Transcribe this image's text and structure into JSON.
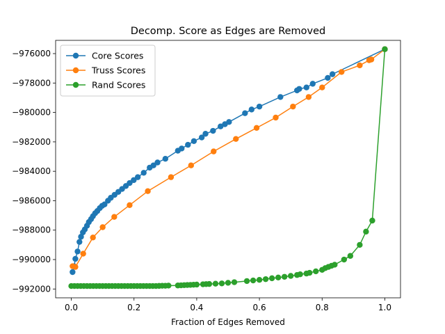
{
  "chart_data": {
    "type": "line",
    "title": "Decomp. Score as Edges are Removed",
    "xlabel": "Fraction of Edges Removed",
    "ylabel": "",
    "xlim": [
      -0.05,
      1.05
    ],
    "ylim": [
      -992600,
      -975100
    ],
    "x_ticks": [
      0.0,
      0.2,
      0.4,
      0.6,
      0.8,
      1.0
    ],
    "x_tick_labels": [
      "0.0",
      "0.2",
      "0.4",
      "0.6",
      "0.8",
      "1.0"
    ],
    "y_ticks": [
      -992000,
      -990000,
      -988000,
      -986000,
      -984000,
      -982000,
      -980000,
      -978000,
      -976000
    ],
    "y_tick_labels": [
      "−992000",
      "−990000",
      "−988000",
      "−986000",
      "−984000",
      "−982000",
      "−980000",
      "−978000",
      "−976000"
    ],
    "grid": false,
    "legend_position": "top-left",
    "series": [
      {
        "name": "Core Scores",
        "color": "#1f77b4",
        "x": [
          0.004,
          0.009,
          0.013,
          0.02,
          0.026,
          0.031,
          0.037,
          0.043,
          0.05,
          0.056,
          0.063,
          0.069,
          0.076,
          0.083,
          0.091,
          0.098,
          0.106,
          0.117,
          0.126,
          0.138,
          0.15,
          0.162,
          0.174,
          0.186,
          0.199,
          0.212,
          0.231,
          0.25,
          0.262,
          0.275,
          0.3,
          0.34,
          0.352,
          0.372,
          0.391,
          0.416,
          0.428,
          0.452,
          0.476,
          0.49,
          0.503,
          0.554,
          0.575,
          0.6,
          0.667,
          0.72,
          0.727,
          0.75,
          0.77,
          0.818,
          0.833,
          1.0
        ],
        "y": [
          -990850,
          -990450,
          -989950,
          -989450,
          -988800,
          -988450,
          -988150,
          -987950,
          -987700,
          -987450,
          -987250,
          -987050,
          -986850,
          -986700,
          -986500,
          -986350,
          -986250,
          -986000,
          -985800,
          -985600,
          -985400,
          -985200,
          -985000,
          -984800,
          -984600,
          -984400,
          -984100,
          -983750,
          -983600,
          -983400,
          -983150,
          -982600,
          -982450,
          -982200,
          -981950,
          -981700,
          -981450,
          -981250,
          -980950,
          -980800,
          -980650,
          -980050,
          -979800,
          -979600,
          -978950,
          -978500,
          -978400,
          -978300,
          -978050,
          -977650,
          -977400,
          -975700
        ]
      },
      {
        "name": "Truss Scores",
        "color": "#ff7f0e",
        "x": [
          0.004,
          0.013,
          0.038,
          0.069,
          0.1,
          0.137,
          0.186,
          0.244,
          0.318,
          0.382,
          0.454,
          0.525,
          0.591,
          0.652,
          0.707,
          0.757,
          0.8,
          0.862,
          0.92,
          0.95,
          0.957,
          1.0
        ],
        "y": [
          -990450,
          -990500,
          -989600,
          -988500,
          -987800,
          -987100,
          -986300,
          -985350,
          -984400,
          -983600,
          -982650,
          -981800,
          -981050,
          -980350,
          -979600,
          -978950,
          -978300,
          -977250,
          -976800,
          -976450,
          -976400,
          -975700
        ]
      },
      {
        "name": "Rand Scores",
        "color": "#2ca02c",
        "x": [
          0.0,
          0.01,
          0.02,
          0.03,
          0.04,
          0.05,
          0.06,
          0.07,
          0.08,
          0.09,
          0.1,
          0.11,
          0.12,
          0.13,
          0.14,
          0.15,
          0.16,
          0.17,
          0.18,
          0.19,
          0.2,
          0.21,
          0.22,
          0.23,
          0.24,
          0.25,
          0.26,
          0.27,
          0.28,
          0.29,
          0.3,
          0.31,
          0.34,
          0.35,
          0.36,
          0.37,
          0.38,
          0.39,
          0.4,
          0.42,
          0.43,
          0.44,
          0.46,
          0.48,
          0.5,
          0.52,
          0.56,
          0.58,
          0.6,
          0.62,
          0.64,
          0.66,
          0.68,
          0.7,
          0.72,
          0.73,
          0.75,
          0.76,
          0.78,
          0.8,
          0.81,
          0.82,
          0.83,
          0.84,
          0.87,
          0.89,
          0.92,
          0.94,
          0.96,
          1.0
        ],
        "y": [
          -991800,
          -991800,
          -991800,
          -991800,
          -991800,
          -991800,
          -991800,
          -991800,
          -991800,
          -991800,
          -991800,
          -991800,
          -991800,
          -991800,
          -991800,
          -991800,
          -991800,
          -991800,
          -991800,
          -991800,
          -991800,
          -991800,
          -991800,
          -991800,
          -991800,
          -991800,
          -991800,
          -991800,
          -991790,
          -991780,
          -991780,
          -991770,
          -991760,
          -991750,
          -991740,
          -991730,
          -991720,
          -991710,
          -991700,
          -991680,
          -991670,
          -991660,
          -991640,
          -991620,
          -991580,
          -991540,
          -991460,
          -991420,
          -991380,
          -991330,
          -991270,
          -991220,
          -991170,
          -991110,
          -991050,
          -991000,
          -990950,
          -990900,
          -990800,
          -990700,
          -990580,
          -990500,
          -990420,
          -990350,
          -990000,
          -989750,
          -989000,
          -988100,
          -987350,
          -975700
        ]
      }
    ]
  }
}
